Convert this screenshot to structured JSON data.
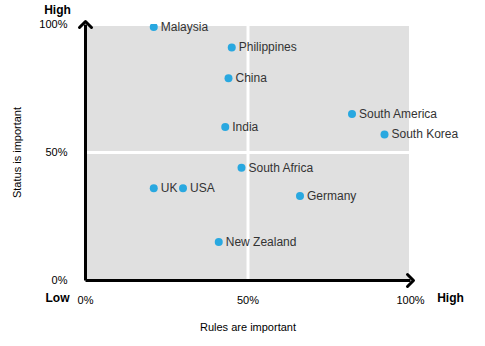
{
  "chart_data": {
    "type": "scatter",
    "x_label": "Rules are important",
    "y_label": "Status is important",
    "points": [
      {
        "label": "Malaysia",
        "x": 21,
        "y": 99
      },
      {
        "label": "Philippines",
        "x": 45,
        "y": 91
      },
      {
        "label": "China",
        "x": 44,
        "y": 79
      },
      {
        "label": "India",
        "x": 43,
        "y": 60
      },
      {
        "label": "South America",
        "x": 82,
        "y": 65
      },
      {
        "label": "South Korea",
        "x": 92,
        "y": 57
      },
      {
        "label": "South Africa",
        "x": 48,
        "y": 44
      },
      {
        "label": "UK",
        "x": 21,
        "y": 36
      },
      {
        "label": "USA",
        "x": 30,
        "y": 36
      },
      {
        "label": "Germany",
        "x": 66,
        "y": 33
      },
      {
        "label": "New Zealand",
        "x": 41,
        "y": 15
      }
    ],
    "color": "#29a8e0",
    "xlim": [
      0,
      100
    ],
    "ylim": [
      0,
      100
    ],
    "xticks": [
      {
        "value": 0,
        "label": "0%"
      },
      {
        "value": 50,
        "label": "50%"
      },
      {
        "value": 100,
        "label": "100%"
      }
    ],
    "yticks": [
      {
        "value": 0,
        "label": "0%"
      },
      {
        "value": 50,
        "label": "50%"
      },
      {
        "value": 100,
        "label": "100%"
      }
    ],
    "grid": true,
    "annotations": [
      {
        "text": "High",
        "position": "y-high"
      },
      {
        "text": "Low",
        "position": "y-low"
      },
      {
        "text": "High",
        "position": "x-high"
      }
    ]
  }
}
